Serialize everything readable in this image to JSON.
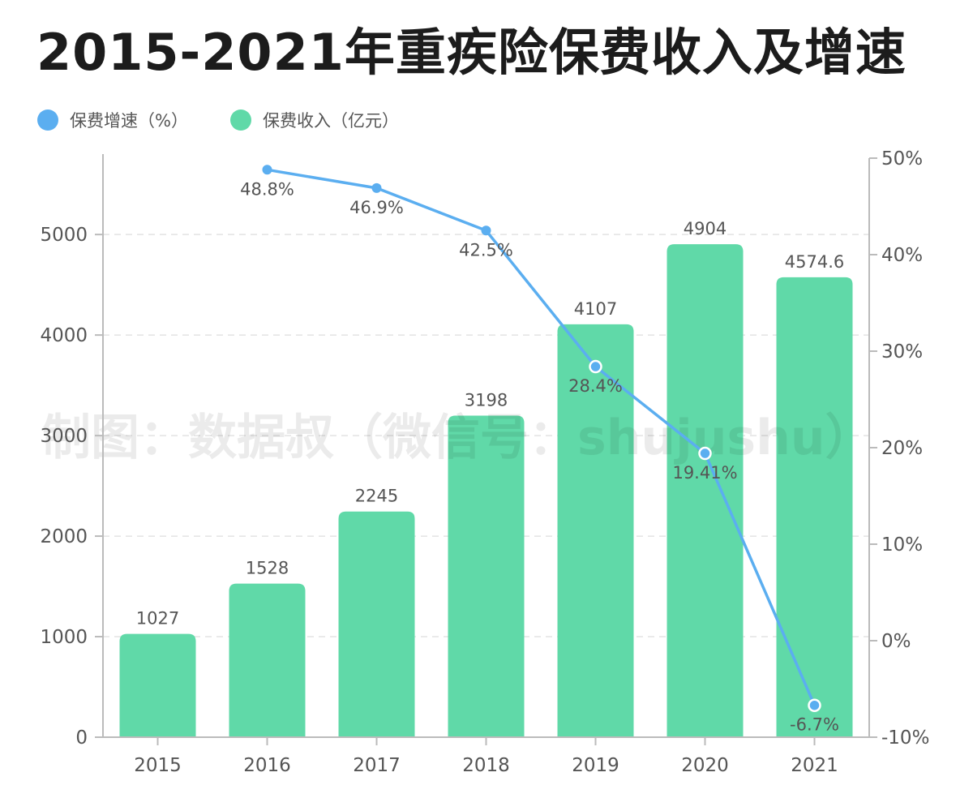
{
  "title": "2015-2021年重疾险保费收入及增速",
  "watermark": "制图：数据叔（微信号：shujushu）",
  "colors": {
    "bar": "#60d9a8",
    "line": "#5baef0",
    "axis": "#bbbbbb",
    "grid": "#e3e3e3",
    "label": "#555555",
    "title": "#1c1c1c"
  },
  "legend": [
    {
      "label": "保费增速（%）",
      "color": "#5baef0"
    },
    {
      "label": "保费收入（亿元）",
      "color": "#60d9a8"
    }
  ],
  "chart_data": {
    "type": "bar",
    "title": "2015-2021年重疾险保费收入及增速",
    "categories": [
      "2015",
      "2016",
      "2017",
      "2018",
      "2019",
      "2020",
      "2021"
    ],
    "series": [
      {
        "name": "保费收入（亿元）",
        "type": "bar",
        "axis": "left",
        "values": [
          1027,
          1528,
          2245,
          3198,
          4107,
          4904,
          4574.6
        ],
        "labels": [
          "1027",
          "1528",
          "2245",
          "3198",
          "4107",
          "4904",
          "4574.6"
        ]
      },
      {
        "name": "保费增速（%）",
        "type": "line",
        "axis": "right",
        "values": [
          null,
          48.8,
          46.9,
          42.5,
          28.4,
          19.41,
          -6.7
        ],
        "labels": [
          "",
          "48.8%",
          "46.9%",
          "42.5%",
          "28.4%",
          "19.41%",
          "-6.7%"
        ]
      }
    ],
    "y_left": {
      "ylim": [
        0,
        5800
      ],
      "ticks": [
        0,
        1000,
        2000,
        3000,
        4000,
        5000
      ],
      "tick_labels": [
        "0",
        "1000",
        "2000",
        "3000",
        "4000",
        "5000"
      ]
    },
    "y_right": {
      "ylim": [
        -10,
        50
      ],
      "ticks": [
        -10,
        0,
        10,
        20,
        30,
        40,
        50
      ],
      "tick_labels": [
        "-10%",
        "0%",
        "10%",
        "20%",
        "30%",
        "40%",
        "50%"
      ]
    },
    "grid": true,
    "legend_position": "top-left"
  }
}
